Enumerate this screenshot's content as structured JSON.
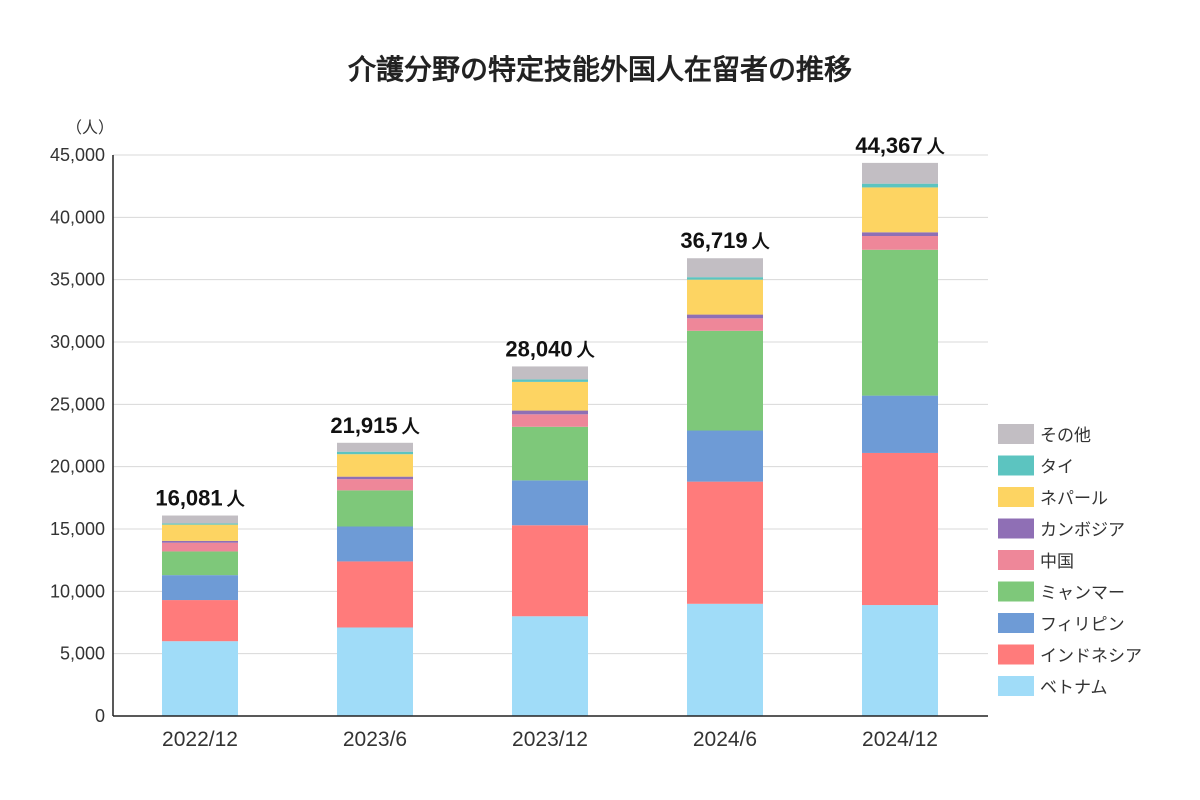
{
  "chart_data": {
    "type": "bar",
    "stacked": true,
    "title": "介護分野の特定技能外国人在留者の推移",
    "y_unit": "（人）",
    "total_unit": "人",
    "ylim": [
      0,
      45000
    ],
    "yticks": [
      0,
      5000,
      10000,
      15000,
      20000,
      25000,
      30000,
      35000,
      40000,
      45000
    ],
    "ytick_labels": [
      "0",
      "5,000",
      "10,000",
      "15,000",
      "20,000",
      "25,000",
      "30,000",
      "35,000",
      "40,000",
      "45,000"
    ],
    "grid": true,
    "legend_position": "right",
    "categories": [
      "2022/12",
      "2023/6",
      "2023/12",
      "2024/6",
      "2024/12"
    ],
    "totals": [
      16081,
      21915,
      28040,
      36719,
      44367
    ],
    "total_labels": [
      "16,081",
      "21,915",
      "28,040",
      "36,719",
      "44,367"
    ],
    "series": [
      {
        "name": "ベトナム",
        "color": "#a0dcf8",
        "values": [
          6000,
          7100,
          8000,
          9000,
          8900
        ]
      },
      {
        "name": "インドネシア",
        "color": "#ff7b7b",
        "values": [
          3300,
          5300,
          7300,
          9800,
          12200
        ]
      },
      {
        "name": "フィリピン",
        "color": "#6e9bd6",
        "values": [
          2000,
          2800,
          3600,
          4100,
          4600
        ]
      },
      {
        "name": "ミャンマー",
        "color": "#7ec87a",
        "values": [
          1900,
          2900,
          4300,
          8000,
          11700
        ]
      },
      {
        "name": "中国",
        "color": "#ee8799",
        "values": [
          700,
          900,
          1000,
          1000,
          1100
        ]
      },
      {
        "name": "カンボジア",
        "color": "#8f6fb5",
        "values": [
          150,
          200,
          300,
          300,
          300
        ]
      },
      {
        "name": "ネパール",
        "color": "#fdd462",
        "values": [
          1300,
          1800,
          2300,
          2800,
          3600
        ]
      },
      {
        "name": "タイ",
        "color": "#5cc4c0",
        "values": [
          100,
          200,
          200,
          200,
          300
        ]
      },
      {
        "name": "その他",
        "color": "#c2bec3",
        "values": [
          631,
          715,
          1040,
          1519,
          1667
        ]
      }
    ]
  }
}
